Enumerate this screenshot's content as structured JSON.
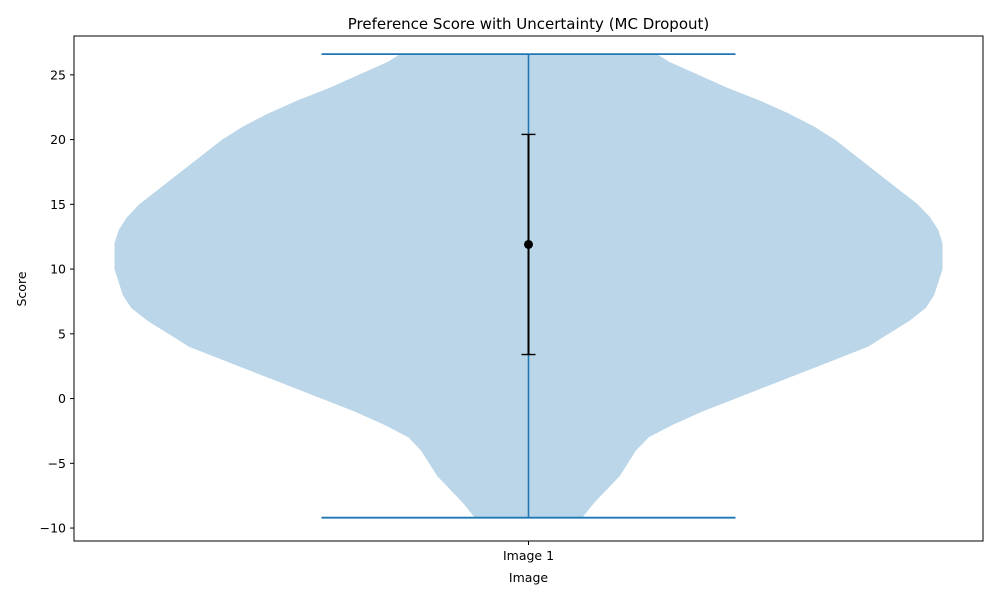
{
  "chart_data": {
    "type": "violin",
    "title": "Preference Score with Uncertainty (MC Dropout)",
    "xlabel": "Image",
    "ylabel": "Score",
    "categories": [
      "Image 1"
    ],
    "ylim": [
      -11,
      28
    ],
    "yticks": [
      -10,
      -5,
      0,
      5,
      10,
      15,
      20,
      25
    ],
    "ytick_labels": [
      "−10",
      "−5",
      "0",
      "5",
      "10",
      "15",
      "20",
      "25"
    ],
    "grid": false,
    "colors": {
      "violin_fill": "#bad6e8",
      "violin_lines": "#1f77b4",
      "errorbar": "#000000"
    },
    "violins": [
      {
        "category": "Image 1",
        "min": -9.2,
        "max": 26.6,
        "density_profile": [
          [
            -9.2,
            0.13
          ],
          [
            -8.0,
            0.16
          ],
          [
            -6.0,
            0.22
          ],
          [
            -4.0,
            0.26
          ],
          [
            -3.0,
            0.29
          ],
          [
            -2.0,
            0.35
          ],
          [
            -1.0,
            0.42
          ],
          [
            0.0,
            0.5
          ],
          [
            1.0,
            0.58
          ],
          [
            2.0,
            0.66
          ],
          [
            3.0,
            0.74
          ],
          [
            4.0,
            0.82
          ],
          [
            5.0,
            0.87
          ],
          [
            6.0,
            0.92
          ],
          [
            7.0,
            0.96
          ],
          [
            8.0,
            0.98
          ],
          [
            9.0,
            0.99
          ],
          [
            10.0,
            1.0
          ],
          [
            11.0,
            1.0
          ],
          [
            12.0,
            1.0
          ],
          [
            13.0,
            0.99
          ],
          [
            14.0,
            0.97
          ],
          [
            15.0,
            0.94
          ],
          [
            16.0,
            0.9
          ],
          [
            17.0,
            0.86
          ],
          [
            18.0,
            0.82
          ],
          [
            19.0,
            0.78
          ],
          [
            20.0,
            0.74
          ],
          [
            21.0,
            0.69
          ],
          [
            22.0,
            0.63
          ],
          [
            23.0,
            0.56
          ],
          [
            24.0,
            0.48
          ],
          [
            25.0,
            0.41
          ],
          [
            26.0,
            0.34
          ],
          [
            26.6,
            0.31
          ]
        ]
      }
    ],
    "errorbars": [
      {
        "category": "Image 1",
        "mean": 11.9,
        "lower": 3.4,
        "upper": 20.4
      }
    ]
  }
}
